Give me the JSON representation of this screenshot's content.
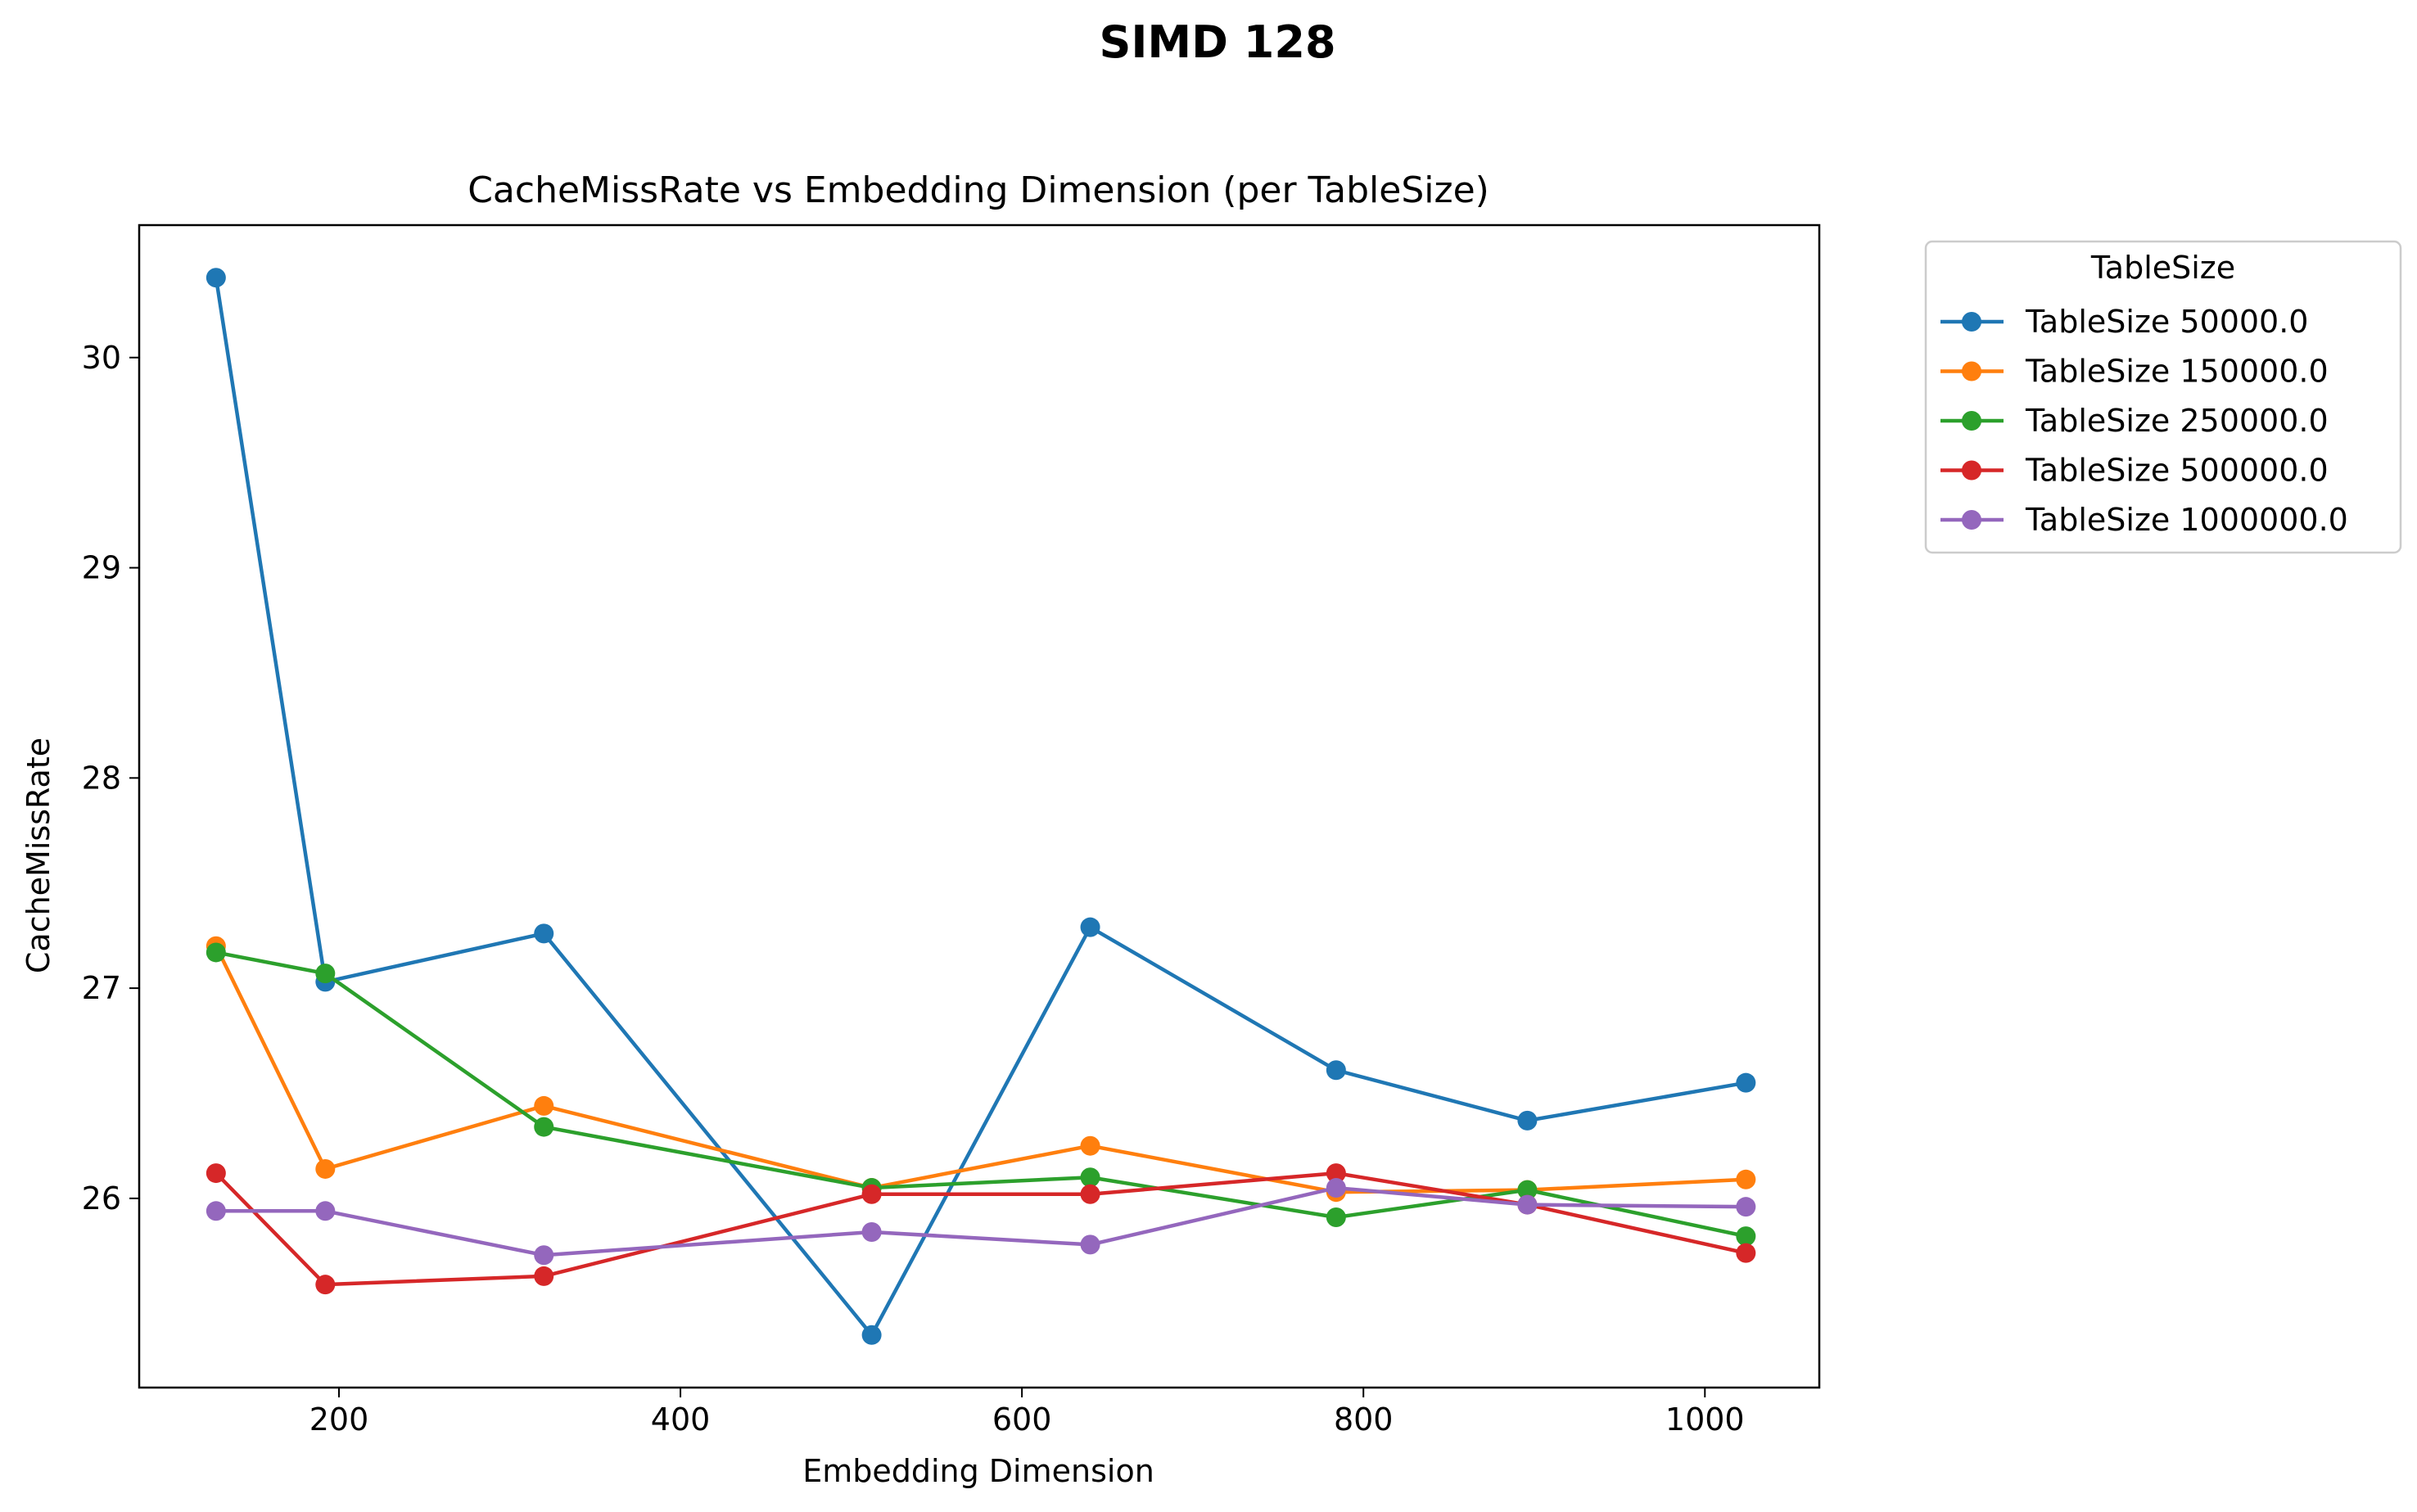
{
  "chart_data": {
    "type": "line",
    "suptitle": "SIMD 128",
    "title": "CacheMissRate vs Embedding Dimension (per TableSize)",
    "xlabel": "Embedding Dimension",
    "ylabel": "CacheMissRate",
    "xlim": [
      83,
      1067
    ],
    "ylim": [
      25.1,
      30.63
    ],
    "xticks": [
      200,
      400,
      600,
      800,
      1000
    ],
    "yticks": [
      26,
      27,
      28,
      29,
      30
    ],
    "grid": false,
    "legend": {
      "title": "TableSize",
      "placement": "outside-top-right"
    },
    "x": [
      128,
      192,
      320,
      512,
      640,
      784,
      896,
      1024
    ],
    "series": [
      {
        "name": "TableSize 50000.0",
        "color": "#1f77b4",
        "values": [
          30.38,
          27.03,
          27.26,
          25.35,
          27.29,
          26.61,
          26.37,
          26.55
        ]
      },
      {
        "name": "TableSize 150000.0",
        "color": "#ff7f0e",
        "values": [
          27.2,
          26.14,
          26.44,
          26.05,
          26.25,
          26.03,
          26.04,
          26.09
        ]
      },
      {
        "name": "TableSize 250000.0",
        "color": "#2ca02c",
        "values": [
          27.17,
          27.07,
          26.34,
          26.05,
          26.1,
          25.91,
          26.04,
          25.82
        ]
      },
      {
        "name": "TableSize 500000.0",
        "color": "#d62728",
        "values": [
          26.12,
          25.59,
          25.63,
          26.02,
          26.02,
          26.12,
          25.97,
          25.74
        ]
      },
      {
        "name": "TableSize 1000000.0",
        "color": "#9467bd",
        "values": [
          25.94,
          25.94,
          25.73,
          25.84,
          25.78,
          26.05,
          25.97,
          25.96
        ]
      }
    ]
  }
}
